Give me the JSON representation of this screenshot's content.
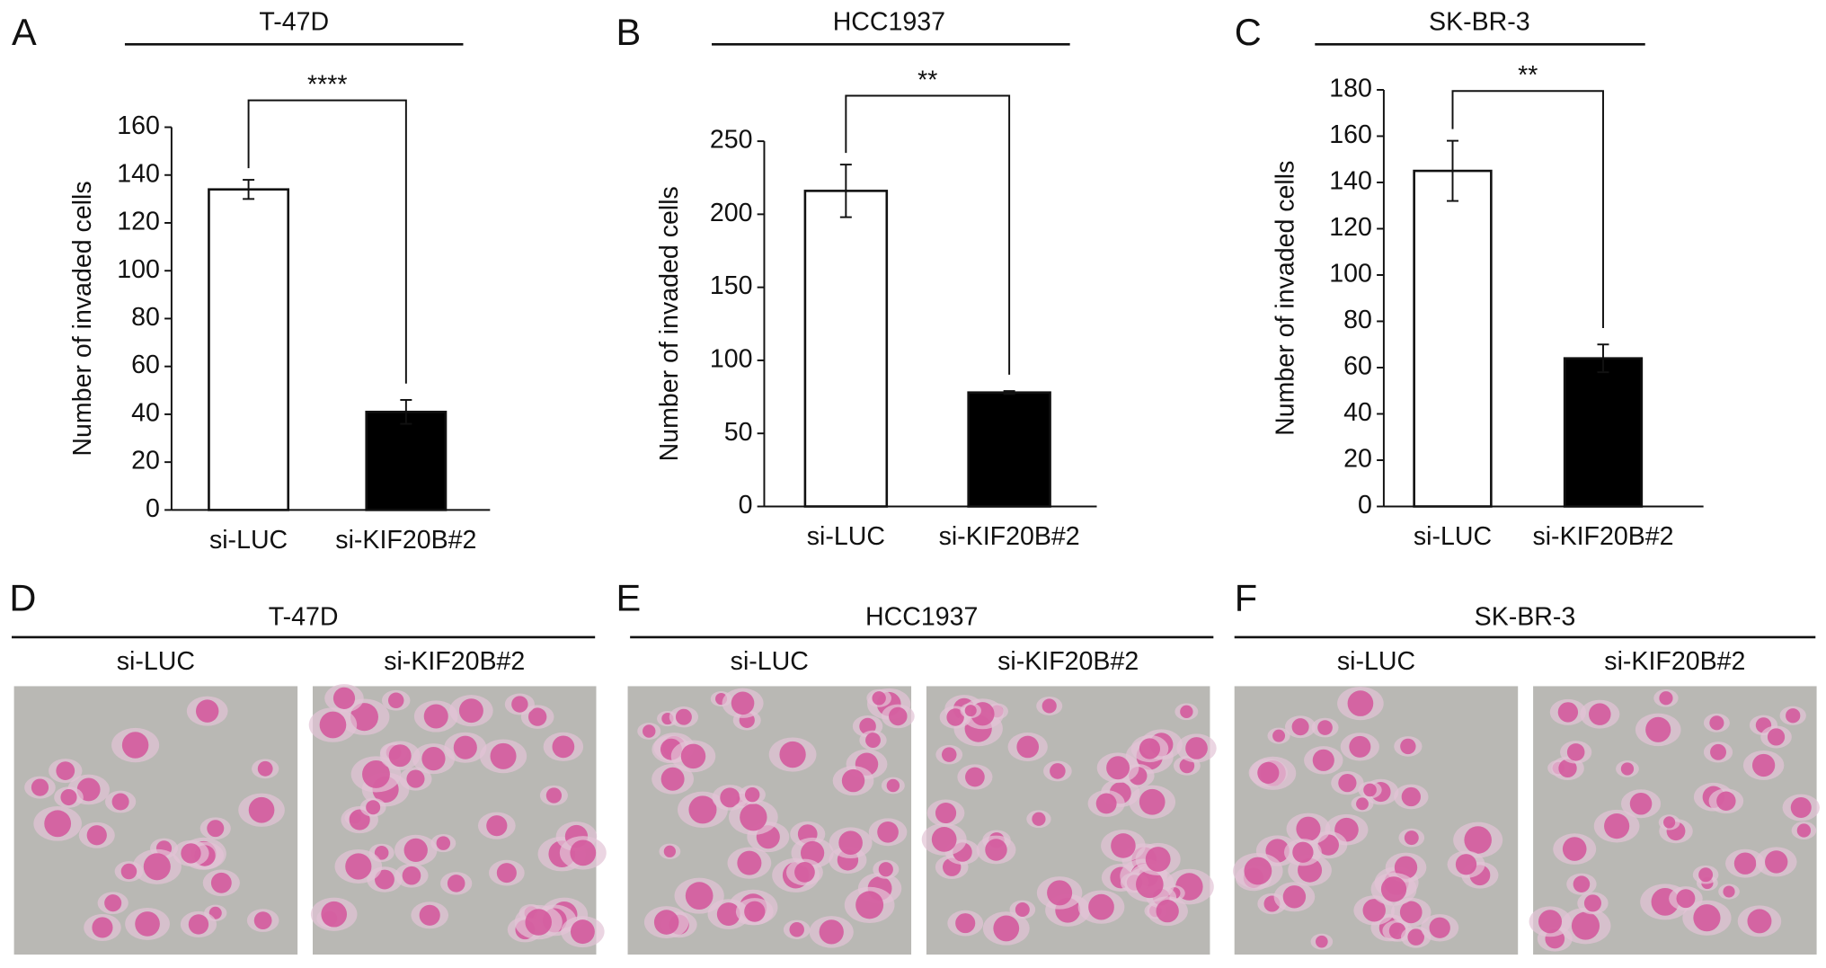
{
  "chart_data": [
    {
      "type": "bar",
      "panel_label": "A",
      "title": "T-47D",
      "ylabel": "Number of invaded cells",
      "categories": [
        "si-LUC",
        "si-KIF20B#2"
      ],
      "values": [
        134,
        41
      ],
      "errors": [
        4,
        5
      ],
      "colors": [
        "#ffffff",
        "#000000"
      ],
      "ylim": [
        0,
        160
      ],
      "yticks": [
        0,
        20,
        40,
        60,
        80,
        100,
        120,
        140,
        160
      ],
      "significance": "****"
    },
    {
      "type": "bar",
      "panel_label": "B",
      "title": "HCC1937",
      "ylabel": "Number of invaded cells",
      "categories": [
        "si-LUC",
        "si-KIF20B#2"
      ],
      "values": [
        216,
        78
      ],
      "errors": [
        18,
        1
      ],
      "colors": [
        "#ffffff",
        "#000000"
      ],
      "ylim": [
        0,
        250
      ],
      "yticks": [
        0,
        50,
        100,
        150,
        200,
        250
      ],
      "significance": "**"
    },
    {
      "type": "bar",
      "panel_label": "C",
      "title": "SK-BR-3",
      "ylabel": "Number of invaded cells",
      "categories": [
        "si-LUC",
        "si-KIF20B#2"
      ],
      "values": [
        145,
        64
      ],
      "errors": [
        13,
        6
      ],
      "colors": [
        "#ffffff",
        "#000000"
      ],
      "ylim": [
        0,
        180
      ],
      "yticks": [
        0,
        20,
        40,
        60,
        80,
        100,
        120,
        140,
        160,
        180
      ],
      "significance": "**"
    }
  ],
  "image_panels": [
    {
      "panel_label": "D",
      "title": "T-47D",
      "images": [
        "si-LUC",
        "si-KIF20B#2"
      ]
    },
    {
      "panel_label": "E",
      "title": "HCC1937",
      "images": [
        "si-LUC",
        "si-KIF20B#2"
      ]
    },
    {
      "panel_label": "F",
      "title": "SK-BR-3",
      "images": [
        "si-LUC",
        "si-KIF20B#2"
      ]
    }
  ]
}
